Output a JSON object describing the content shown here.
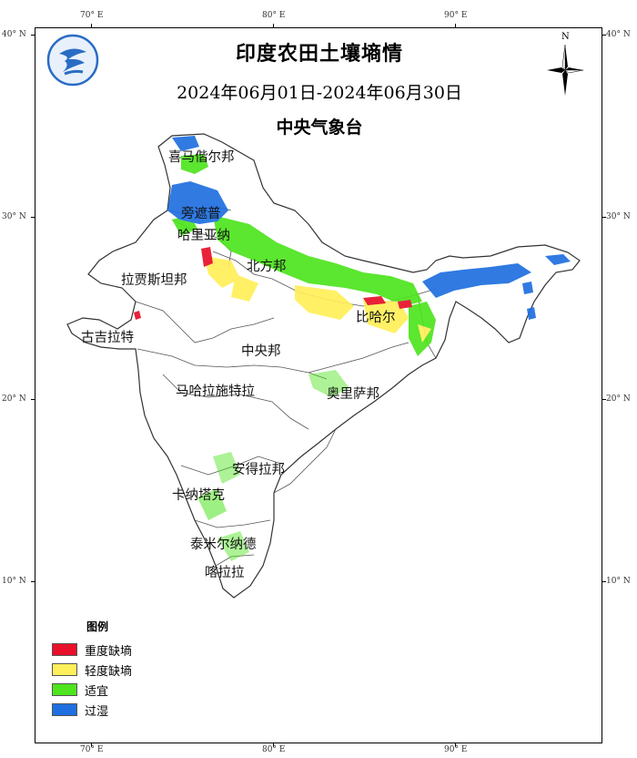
{
  "map": {
    "title": "印度农田土壤墒情",
    "date_range": "2024年06月01日-2024年06月30日",
    "agency": "中央气象台",
    "north_label": "N"
  },
  "axes": {
    "top": [
      "70° E",
      "80° E",
      "90° E"
    ],
    "bottom": [
      "70° E",
      "80° E",
      "90° E"
    ],
    "left": [
      "40° N",
      "30° N",
      "20° N",
      "10° N"
    ],
    "right": [
      "40° N",
      "30° N",
      "20° N",
      "10° N"
    ]
  },
  "regions": [
    "喜马偕尔邦",
    "旁遮普",
    "哈里亚纳",
    "北方邦",
    "拉贾斯坦邦",
    "比哈尔",
    "古吉拉特",
    "中央邦",
    "马哈拉施特拉",
    "奥里萨邦",
    "安得拉邦",
    "卡纳塔克",
    "泰米尔纳德",
    "喀拉拉"
  ],
  "legend": {
    "title": "图例",
    "items": [
      {
        "label": "重度缺墒",
        "color": "#e8102a"
      },
      {
        "label": "轻度缺墒",
        "color": "#ffef5a"
      },
      {
        "label": "适宜",
        "color": "#4ee41e"
      },
      {
        "label": "过湿",
        "color": "#1f6fe0"
      }
    ]
  }
}
